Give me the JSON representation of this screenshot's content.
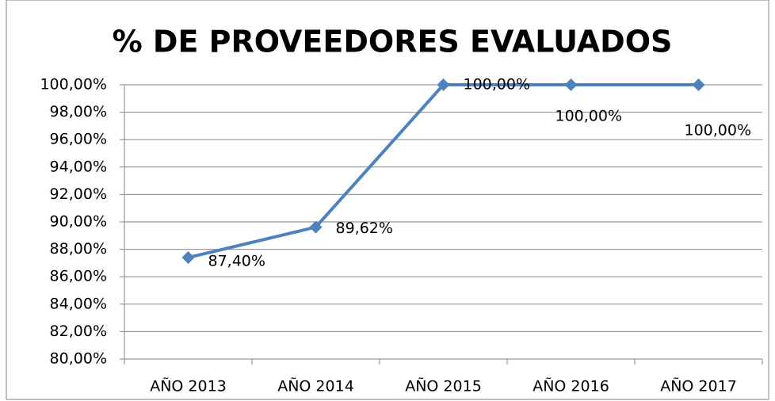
{
  "chart_data": {
    "type": "line",
    "title": "% DE PROVEEDORES EVALUADOS",
    "categories": [
      "AÑO 2013",
      "AÑO 2014",
      "AÑO 2015",
      "AÑO 2016",
      "AÑO 2017"
    ],
    "series": [
      {
        "name": "% de proveedores evaluados",
        "color": "#4f81bd",
        "values": [
          87.4,
          89.62,
          100,
          100,
          100
        ],
        "value_labels": [
          "87,40%",
          "89,62%",
          "100,00%",
          "100,00%",
          "100,00%"
        ]
      }
    ],
    "ylim": [
      80,
      100
    ],
    "yticks": [
      {
        "value": 80,
        "label": "80,00%"
      },
      {
        "value": 82,
        "label": "82,00%"
      },
      {
        "value": 84,
        "label": "84,00%"
      },
      {
        "value": 86,
        "label": "86,00%"
      },
      {
        "value": 88,
        "label": "88,00%"
      },
      {
        "value": 90,
        "label": "90,00%"
      },
      {
        "value": 92,
        "label": "92,00%"
      },
      {
        "value": 94,
        "label": "94,00%"
      },
      {
        "value": 96,
        "label": "96,00%"
      },
      {
        "value": 98,
        "label": "98,00%"
      },
      {
        "value": 100,
        "label": "100,00%"
      }
    ],
    "grid": true
  }
}
